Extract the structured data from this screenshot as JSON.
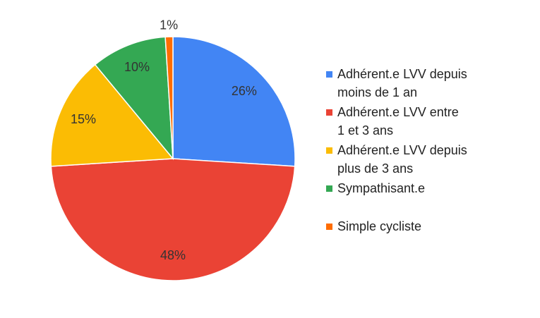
{
  "chart_data": {
    "type": "pie",
    "categories": [
      "Adhérent.e LVV depuis moins de 1 an",
      "Adhérent.e LVV entre 1 et 3 ans",
      "Adhérent.e LVV depuis plus de 3 ans",
      "Sympathisant.e",
      "Simple cycliste"
    ],
    "values": [
      26,
      48,
      15,
      10,
      1
    ],
    "value_labels": [
      "26%",
      "48%",
      "15%",
      "10%",
      "1%"
    ],
    "colors": [
      "#4285f4",
      "#ea4335",
      "#fbbc04",
      "#34a853",
      "#ff6d01"
    ],
    "legend": "right"
  }
}
